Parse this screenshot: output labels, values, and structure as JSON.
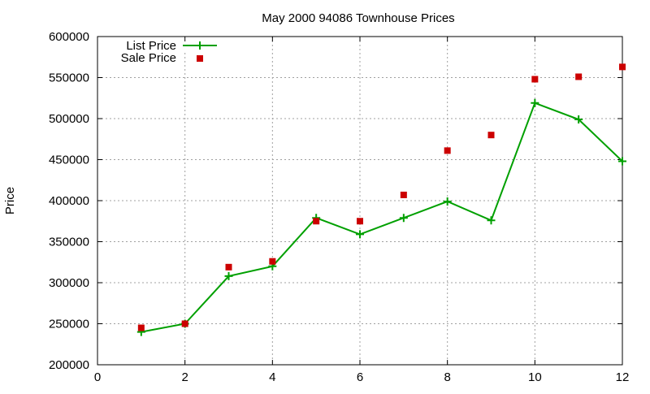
{
  "chart_data": {
    "type": "line",
    "title": "May 2000 94086 Townhouse Prices",
    "xlabel": "",
    "ylabel": "Price",
    "xlim": [
      0,
      12
    ],
    "ylim": [
      200000,
      600000
    ],
    "x_ticks": [
      "0",
      "2",
      "4",
      "6",
      "8",
      "10",
      "12"
    ],
    "y_ticks": [
      "200000",
      "250000",
      "300000",
      "350000",
      "400000",
      "450000",
      "500000",
      "550000",
      "600000"
    ],
    "grid": true,
    "legend_position": "top-left",
    "x": [
      1,
      2,
      3,
      4,
      5,
      6,
      7,
      8,
      9,
      10,
      11,
      12
    ],
    "series": [
      {
        "name": "List Price",
        "style": "linespoints",
        "color": "#00a000",
        "values": [
          240000,
          250000,
          308000,
          320000,
          379000,
          359000,
          379000,
          399000,
          376000,
          519000,
          499000,
          448000
        ]
      },
      {
        "name": "Sale Price",
        "style": "points",
        "color": "#cc0000",
        "values": [
          245000,
          250000,
          319000,
          326000,
          375000,
          375000,
          407000,
          461000,
          480000,
          548000,
          551000,
          563000
        ]
      }
    ]
  }
}
